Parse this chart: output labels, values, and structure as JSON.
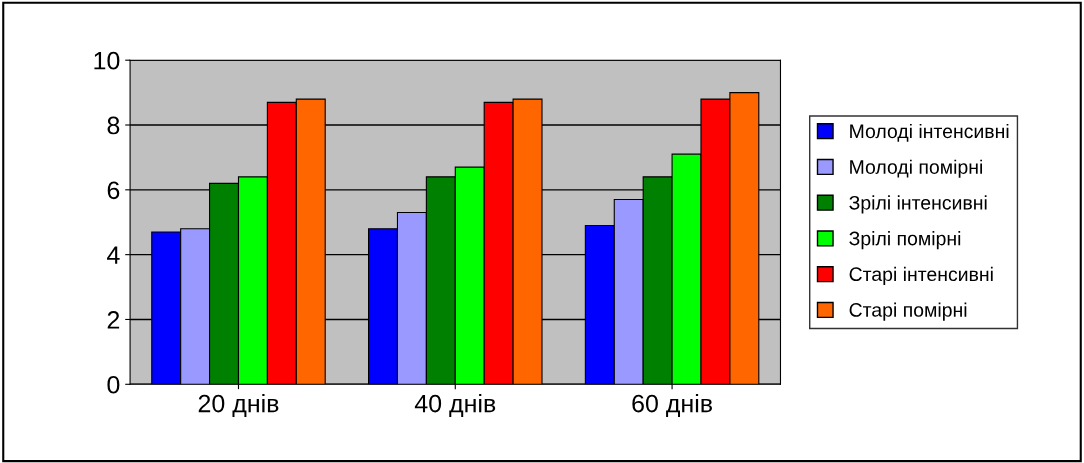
{
  "chart_data": {
    "type": "bar",
    "categories": [
      "20 днів",
      "40 днів",
      "60 днів"
    ],
    "series": [
      {
        "name": "Молоді інтенсивні",
        "color": "#0000ff",
        "values": [
          4.7,
          4.8,
          4.9
        ]
      },
      {
        "name": "Молоді помірні",
        "color": "#9999ff",
        "values": [
          4.8,
          5.3,
          5.7
        ]
      },
      {
        "name": "Зрілі інтенсивні",
        "color": "#008000",
        "values": [
          6.2,
          6.4,
          6.4
        ]
      },
      {
        "name": "Зрілі помірні",
        "color": "#00ff00",
        "values": [
          6.4,
          6.7,
          7.1
        ]
      },
      {
        "name": "Старі інтенсивні",
        "color": "#ff0000",
        "values": [
          8.7,
          8.7,
          8.8
        ]
      },
      {
        "name": "Старі помірні",
        "color": "#ff6600",
        "values": [
          8.8,
          8.8,
          9.0
        ]
      }
    ],
    "ylim": [
      0,
      10
    ],
    "yticks": [
      0,
      2,
      4,
      6,
      8,
      10
    ],
    "grid": "y",
    "legend": "right"
  }
}
